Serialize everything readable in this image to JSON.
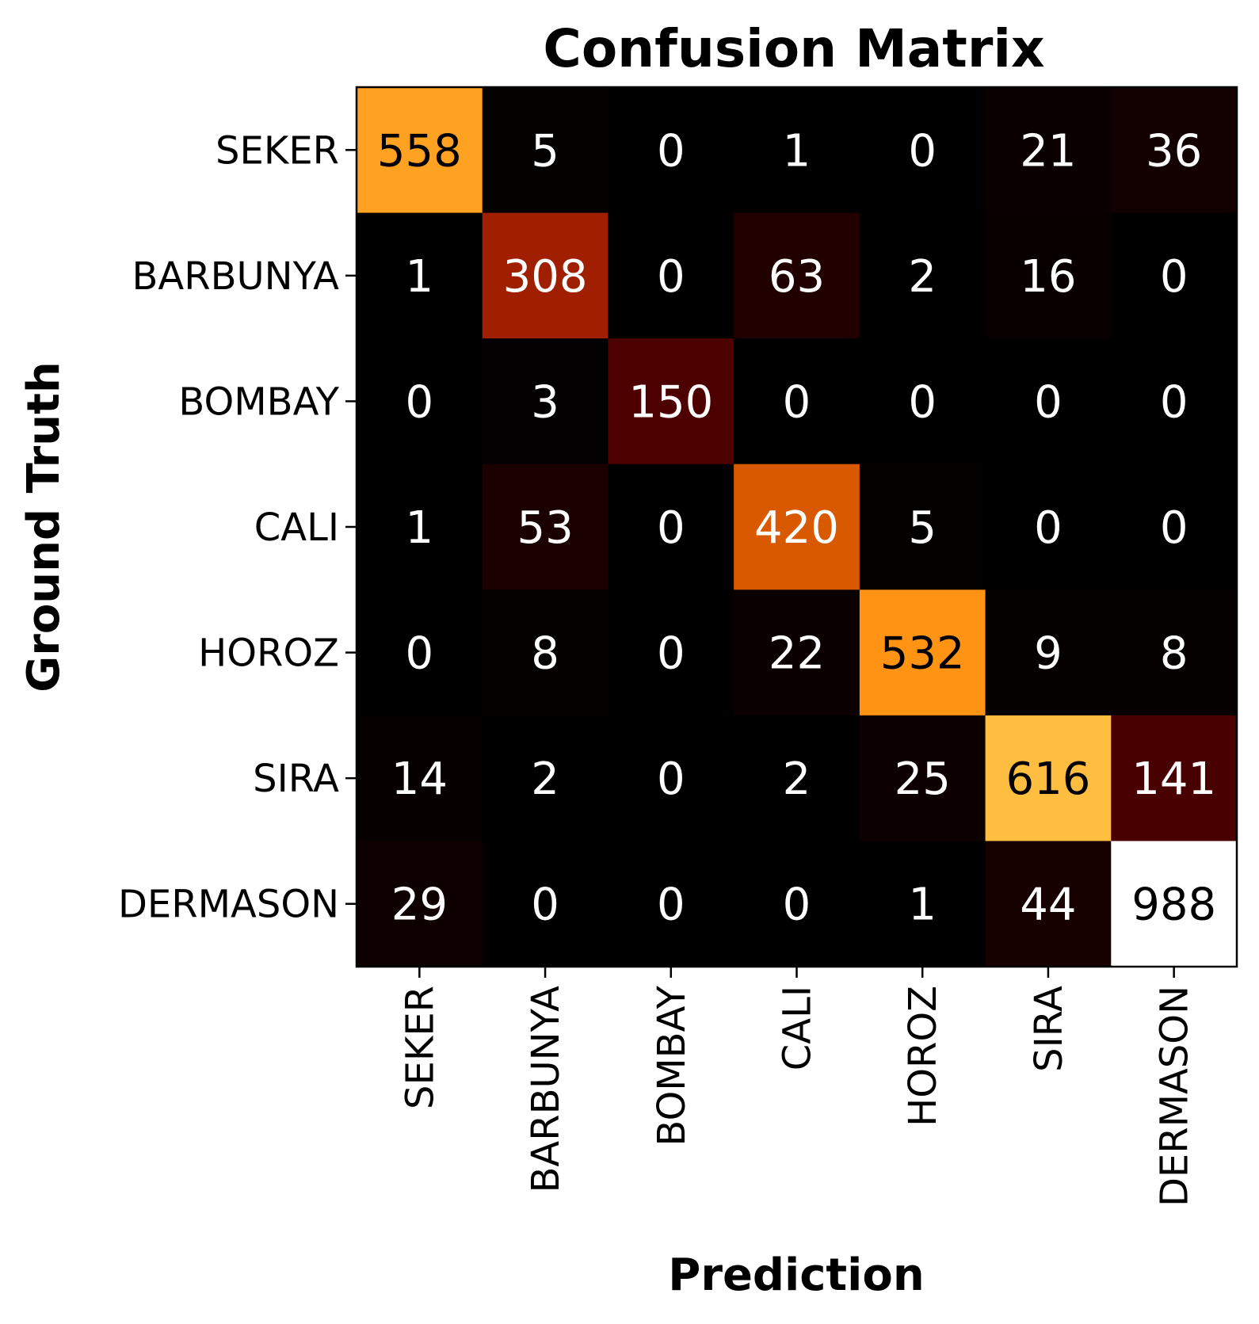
{
  "chart_data": {
    "type": "heatmap",
    "title": "Confusion Matrix",
    "xlabel": "Prediction",
    "ylabel": "Ground Truth",
    "x_categories": [
      "SEKER",
      "BARBUNYA",
      "BOMBAY",
      "CALI",
      "HOROZ",
      "SIRA",
      "DERMASON"
    ],
    "y_categories": [
      "SEKER",
      "BARBUNYA",
      "BOMBAY",
      "CALI",
      "HOROZ",
      "SIRA",
      "DERMASON"
    ],
    "values": [
      [
        558,
        5,
        0,
        1,
        0,
        21,
        36
      ],
      [
        1,
        308,
        0,
        63,
        2,
        16,
        0
      ],
      [
        0,
        3,
        150,
        0,
        0,
        0,
        0
      ],
      [
        1,
        53,
        0,
        420,
        5,
        0,
        0
      ],
      [
        0,
        8,
        0,
        22,
        532,
        9,
        8
      ],
      [
        14,
        2,
        0,
        2,
        25,
        616,
        141
      ],
      [
        29,
        0,
        0,
        0,
        1,
        44,
        988
      ]
    ],
    "vmin": 0,
    "vmax": 988,
    "colormap": "afmhot",
    "grid": false,
    "legend": "none"
  }
}
